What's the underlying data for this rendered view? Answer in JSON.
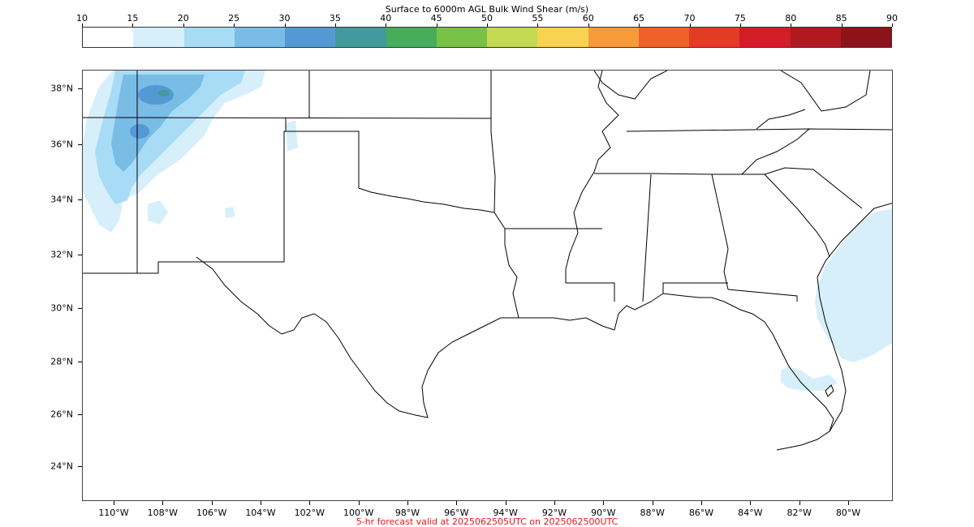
{
  "title": "Surface to 6000m AGL Bulk Wind Shear (m/s)",
  "colorbar": {
    "ticks": [
      "10",
      "15",
      "20",
      "25",
      "30",
      "35",
      "40",
      "45",
      "50",
      "55",
      "60",
      "65",
      "70",
      "75",
      "80",
      "85",
      "90"
    ],
    "colors": [
      "#ffffff",
      "#d6effb",
      "#a8dcf6",
      "#79bce6",
      "#5499d3",
      "#419a9b",
      "#46ad5a",
      "#78c247",
      "#c4da52",
      "#f8d350",
      "#f79a38",
      "#f06129",
      "#e23b26",
      "#d11e28",
      "#b11820",
      "#8e1219"
    ]
  },
  "lat_labels": [
    "38°N",
    "36°N",
    "34°N",
    "32°N",
    "30°N",
    "28°N",
    "26°N",
    "24°N"
  ],
  "lon_labels": [
    "110°W",
    "108°W",
    "106°W",
    "104°W",
    "102°W",
    "100°W",
    "98°W",
    "96°W",
    "94°W",
    "92°W",
    "90°W",
    "88°W",
    "86°W",
    "84°W",
    "82°W",
    "80°W"
  ],
  "footer": "5-hr forecast valid at 2025062505UTC on 2025062500UTC"
}
